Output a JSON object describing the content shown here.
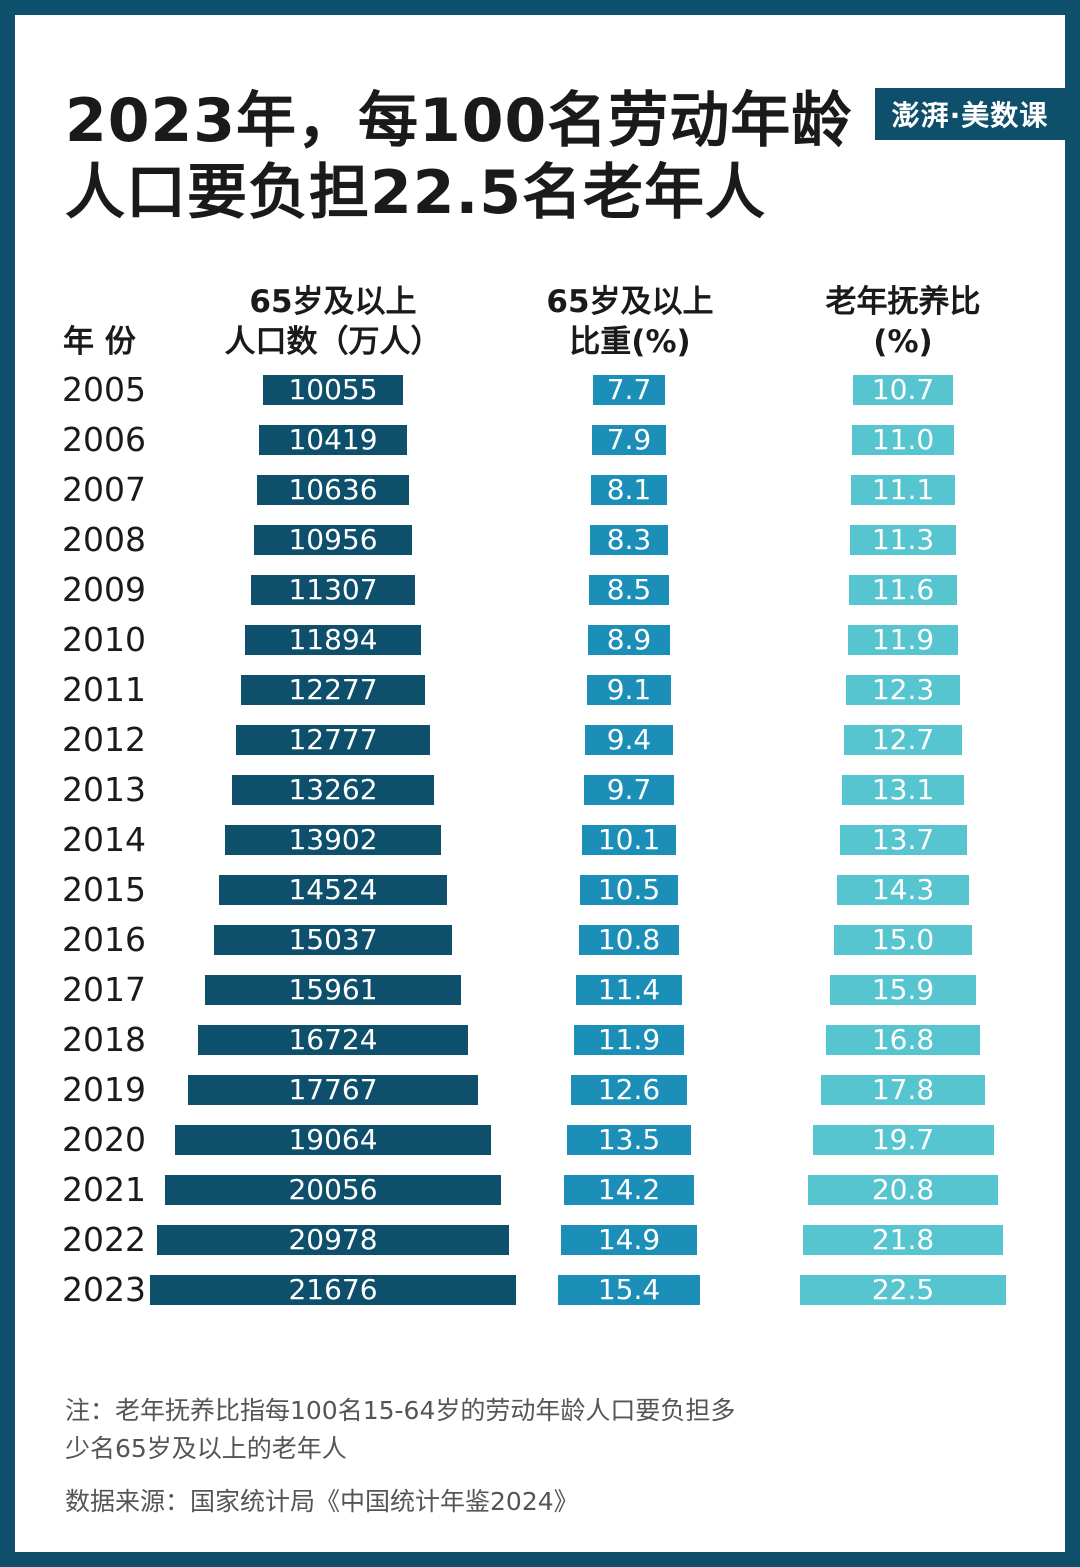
{
  "title_lines": [
    "2023年，每100名劳动年龄",
    "人口要负担22.5名老年人"
  ],
  "logo": "澎湃·美数课",
  "headers": {
    "year": "年 份",
    "pop_line1": "65岁及以上",
    "pop_line2": "人口数（万人）",
    "share_line1": "65岁及以上",
    "share_line2": "比重(%)",
    "ratio_line1": "老年抚养比",
    "ratio_line2": "(%)"
  },
  "colors": {
    "pop": "#0e4f6b",
    "share": "#1b8fb8",
    "ratio": "#57c5d0"
  },
  "chart_data": {
    "type": "table",
    "years": [
      "2005",
      "2006",
      "2007",
      "2008",
      "2009",
      "2010",
      "2011",
      "2012",
      "2013",
      "2014",
      "2015",
      "2016",
      "2017",
      "2018",
      "2019",
      "2020",
      "2021",
      "2022",
      "2023"
    ],
    "series": [
      {
        "key": "pop",
        "values": [
          "10055",
          "10419",
          "10636",
          "10956",
          "11307",
          "11894",
          "12277",
          "12777",
          "13262",
          "13902",
          "14524",
          "15037",
          "15961",
          "16724",
          "17767",
          "19064",
          "20056",
          "20978",
          "21676"
        ]
      },
      {
        "key": "share",
        "values": [
          "7.7",
          "7.9",
          "8.1",
          "8.3",
          "8.5",
          "8.9",
          "9.1",
          "9.4",
          "9.7",
          "10.1",
          "10.5",
          "10.8",
          "11.4",
          "11.9",
          "12.6",
          "13.5",
          "14.2",
          "14.9",
          "15.4"
        ]
      },
      {
        "key": "ratio",
        "values": [
          "10.7",
          "11.0",
          "11.1",
          "11.3",
          "11.6",
          "11.9",
          "12.3",
          "12.7",
          "13.1",
          "13.7",
          "14.3",
          "15.0",
          "15.9",
          "16.8",
          "17.8",
          "19.7",
          "20.8",
          "21.8",
          "22.5"
        ]
      }
    ]
  },
  "notes": {
    "line1": "注：老年抚养比指每100名15-64岁的劳动年龄人口要负担多",
    "line2": "少名65岁及以上的老年人",
    "source": "数据来源：国家统计局《中国统计年鉴2024》"
  }
}
